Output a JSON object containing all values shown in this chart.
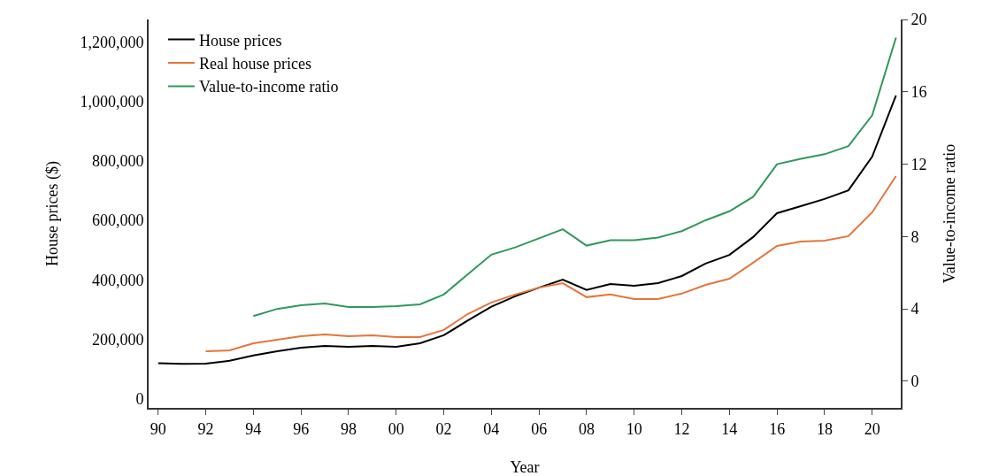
{
  "chart_data": {
    "type": "line",
    "xlabel": "Year",
    "ylabel": "House prices ($)",
    "y2label": "Value-to-income ratio",
    "series": [
      {
        "name": "House prices",
        "color": "#000000",
        "x": [
          1990,
          1991,
          1992,
          1993,
          1994,
          1995,
          1996,
          1997,
          1998,
          1999,
          2000,
          2001,
          2002,
          2003,
          2004,
          2005,
          2006,
          2007,
          2008,
          2009,
          2010,
          2011,
          2012,
          2013,
          2014,
          2015,
          2016,
          2017,
          2018,
          2019,
          2020,
          2021
        ],
        "values": [
          120000,
          118000,
          119000,
          128000,
          146000,
          160000,
          172000,
          178000,
          175000,
          178000,
          175000,
          187000,
          214000,
          263000,
          310000,
          345000,
          374000,
          401000,
          366000,
          386000,
          380000,
          389000,
          413000,
          455000,
          484000,
          544000,
          624000,
          648000,
          672000,
          701000,
          814000,
          1020000
        ]
      },
      {
        "name": "Real house prices",
        "color": "#e8743b",
        "x": [
          1992,
          1993,
          1994,
          1995,
          1996,
          1997,
          1998,
          1999,
          2000,
          2001,
          2002,
          2003,
          2004,
          2005,
          2006,
          2007,
          2008,
          2009,
          2010,
          2011,
          2012,
          2013,
          2014,
          2015,
          2016,
          2017,
          2018,
          2019,
          2020,
          2021
        ],
        "values": [
          160000,
          163000,
          187000,
          199000,
          211000,
          217000,
          211000,
          214000,
          208000,
          208000,
          232000,
          285000,
          324000,
          351000,
          374000,
          389000,
          342000,
          351000,
          336000,
          336000,
          354000,
          383000,
          404000,
          458000,
          514000,
          529000,
          532000,
          547000,
          627000,
          749000
        ]
      },
      {
        "name": "Value-to-income ratio",
        "color": "#2e9a5a",
        "axis": "y2",
        "x": [
          1994,
          1995,
          1996,
          1997,
          1998,
          1999,
          2000,
          2001,
          2002,
          2003,
          2004,
          2005,
          2006,
          2007,
          2008,
          2009,
          2010,
          2011,
          2012,
          2013,
          2014,
          2015,
          2016,
          2017,
          2018,
          2019,
          2020,
          2021
        ],
        "values": [
          3.6,
          4.0,
          4.2,
          4.3,
          4.1,
          4.1,
          4.15,
          4.25,
          4.8,
          5.9,
          7.0,
          7.4,
          7.9,
          8.4,
          7.5,
          7.8,
          7.8,
          7.95,
          8.3,
          8.9,
          9.4,
          10.2,
          12.0,
          12.3,
          12.55,
          13.0,
          14.7,
          19.0
        ]
      }
    ],
    "xlim": [
      1989.6,
      2021.2
    ],
    "xticks": [
      {
        "value": 1990,
        "label": "90"
      },
      {
        "value": 1992,
        "label": "92"
      },
      {
        "value": 1994,
        "label": "94"
      },
      {
        "value": 1996,
        "label": "96"
      },
      {
        "value": 1998,
        "label": "98"
      },
      {
        "value": 2000,
        "label": "00"
      },
      {
        "value": 2002,
        "label": "02"
      },
      {
        "value": 2004,
        "label": "04"
      },
      {
        "value": 2006,
        "label": "06"
      },
      {
        "value": 2008,
        "label": "08"
      },
      {
        "value": 2010,
        "label": "10"
      },
      {
        "value": 2012,
        "label": "12"
      },
      {
        "value": 2014,
        "label": "14"
      },
      {
        "value": 2016,
        "label": "16"
      },
      {
        "value": 2018,
        "label": "18"
      },
      {
        "value": 2020,
        "label": "20"
      }
    ],
    "ylim": [
      -30000,
      1275000
    ],
    "yticks": [
      0,
      {
        "value": 200000,
        "label": "200,000"
      },
      {
        "value": 400000,
        "label": "400,000"
      },
      {
        "value": 600000,
        "label": "600,000"
      },
      {
        "value": 800000,
        "label": "800,000"
      },
      {
        "value": 1000000,
        "label": "1,000,000"
      },
      {
        "value": 1200000,
        "label": "1,200,000"
      }
    ],
    "y2lim": [
      -1.47,
      20
    ],
    "y2ticks": [
      0,
      4,
      8,
      12,
      16,
      20
    ],
    "grid": false,
    "legend": "top left",
    "marker": "none",
    "line_style": "solid"
  }
}
